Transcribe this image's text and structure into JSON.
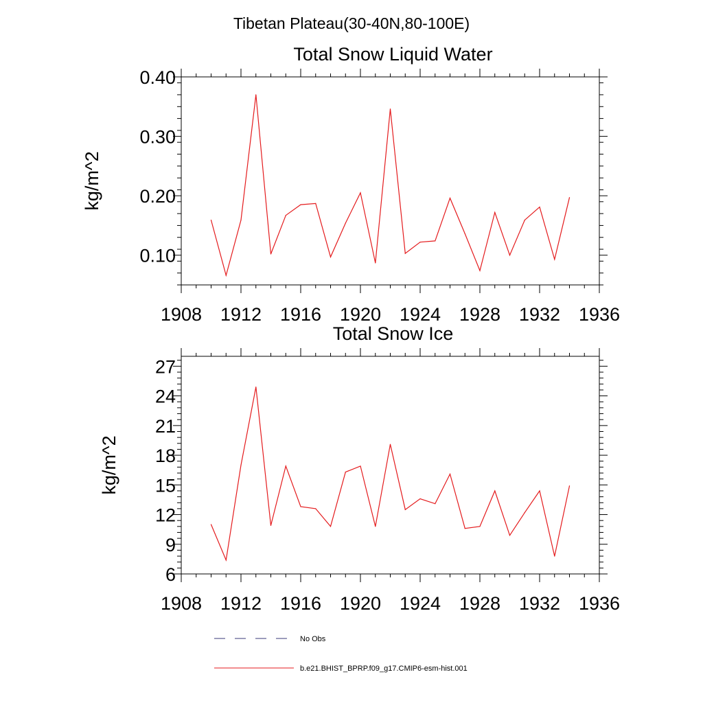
{
  "suptitle": "Tibetan Plateau(30-40N,80-100E)",
  "legend": {
    "placement": "bottom",
    "entries": [
      {
        "label": "No Obs",
        "style": "dashed",
        "color": "#3a3a7a"
      },
      {
        "label": "b.e21.BHIST_BPRP.f09_g17.CMIP6-esm-hist.001",
        "style": "solid",
        "color": "#e41a1c"
      }
    ]
  },
  "chart_data": [
    {
      "type": "line",
      "title": "Total Snow Liquid Water",
      "xlabel": "",
      "ylabel": "kg/m^2",
      "xlim": [
        1908,
        1936
      ],
      "ylim": [
        0.05,
        0.4
      ],
      "xticks": [
        1908,
        1912,
        1916,
        1920,
        1924,
        1928,
        1932,
        1936
      ],
      "xtick_labels": [
        "1908",
        "1912",
        "1916",
        "1920",
        "1924",
        "1928",
        "1932",
        "1936"
      ],
      "yticks": [
        0.1,
        0.2,
        0.3,
        0.4
      ],
      "ytick_labels": [
        "0.10",
        "0.20",
        "0.30",
        "0.40"
      ],
      "grid": false,
      "x": [
        1910,
        1911,
        1912,
        1913,
        1914,
        1915,
        1916,
        1917,
        1918,
        1919,
        1920,
        1921,
        1922,
        1923,
        1924,
        1925,
        1926,
        1927,
        1928,
        1929,
        1930,
        1931,
        1932,
        1933,
        1934
      ],
      "series": [
        {
          "name": "b.e21.BHIST_BPRP.f09_g17.CMIP6-esm-hist.001",
          "color": "#e41a1c",
          "values": [
            0.159,
            0.066,
            0.159,
            0.37,
            0.102,
            0.167,
            0.185,
            0.187,
            0.097,
            0.154,
            0.205,
            0.087,
            0.346,
            0.103,
            0.122,
            0.124,
            0.196,
            0.136,
            0.074,
            0.172,
            0.1,
            0.159,
            0.181,
            0.093,
            0.197
          ]
        }
      ]
    },
    {
      "type": "line",
      "title": "Total Snow Ice",
      "xlabel": "",
      "ylabel": "kg/m^2",
      "xlim": [
        1908,
        1936
      ],
      "ylim": [
        6,
        28
      ],
      "xticks": [
        1908,
        1912,
        1916,
        1920,
        1924,
        1928,
        1932,
        1936
      ],
      "xtick_labels": [
        "1908",
        "1912",
        "1916",
        "1920",
        "1924",
        "1928",
        "1932",
        "1936"
      ],
      "yticks": [
        6,
        9,
        12,
        15,
        18,
        21,
        24,
        27
      ],
      "ytick_labels": [
        "6",
        "9",
        "12",
        "15",
        "18",
        "21",
        "24",
        "27"
      ],
      "grid": false,
      "x": [
        1910,
        1911,
        1912,
        1913,
        1914,
        1915,
        1916,
        1917,
        1918,
        1919,
        1920,
        1921,
        1922,
        1923,
        1924,
        1925,
        1926,
        1927,
        1928,
        1929,
        1930,
        1931,
        1932,
        1933,
        1934
      ],
      "series": [
        {
          "name": "b.e21.BHIST_BPRP.f09_g17.CMIP6-esm-hist.001",
          "color": "#e41a1c",
          "values": [
            11.0,
            7.4,
            17.0,
            24.9,
            10.9,
            16.9,
            12.8,
            12.6,
            10.8,
            16.3,
            16.9,
            10.8,
            19.1,
            12.5,
            13.6,
            13.1,
            16.1,
            10.6,
            10.8,
            14.4,
            9.9,
            12.2,
            14.4,
            7.8,
            14.9
          ]
        }
      ]
    }
  ]
}
